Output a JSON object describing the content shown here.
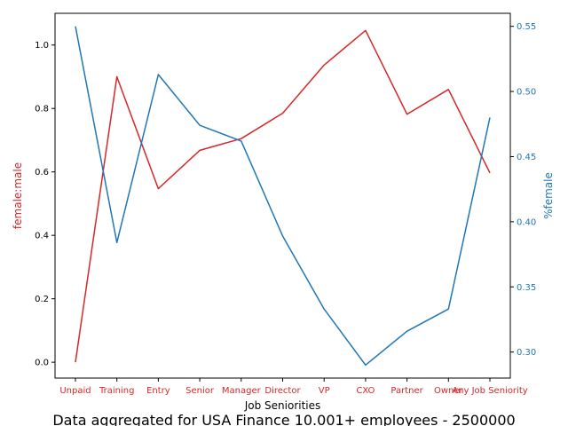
{
  "chart_data": {
    "type": "line",
    "title": "Data aggregated for USA Finance 10.001+ employees - 2500000",
    "xlabel": "Job Seniorities",
    "categories": [
      "Unpaid",
      "Training",
      "Entry",
      "Senior",
      "Manager",
      "Director",
      "VP",
      "CXO",
      "Partner",
      "Owner",
      "Any Job Seniority"
    ],
    "series": [
      {
        "name": "female:male",
        "axis": "left",
        "color": "#d62728",
        "values": [
          0.0,
          0.9,
          0.547,
          0.668,
          0.705,
          0.785,
          0.937,
          1.046,
          0.782,
          0.86,
          0.597
        ]
      },
      {
        "name": "%female",
        "axis": "right",
        "color": "#1f77b4",
        "values": [
          0.55,
          0.384,
          0.513,
          0.474,
          0.462,
          0.389,
          0.333,
          0.29,
          0.316,
          0.333,
          0.48
        ]
      }
    ],
    "y_left": {
      "label": "female:male",
      "color": "#d62728",
      "ylim": [
        -0.05,
        1.1
      ],
      "ticks": [
        0.0,
        0.2,
        0.4,
        0.6,
        0.8,
        1.0
      ]
    },
    "y_right": {
      "label": "%female",
      "color": "#1f77b4",
      "ylim": [
        0.28,
        0.56
      ],
      "ticks": [
        0.3,
        0.35,
        0.4,
        0.45,
        0.5,
        0.55
      ]
    },
    "x_tick_color": "#d62728",
    "grid": false,
    "legend": "none"
  }
}
